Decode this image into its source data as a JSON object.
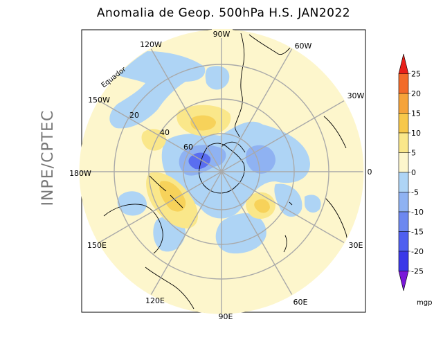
{
  "title": "Anomalia de Geop. 500hPa H.S. JAN2022",
  "side_label": "INPE/CPTEC",
  "longitude_labels": [
    "90W",
    "60W",
    "30W",
    "0",
    "30E",
    "60E",
    "90E",
    "120E",
    "150E",
    "180W",
    "150W",
    "120W"
  ],
  "latitude_labels": [
    "20",
    "40",
    "60"
  ],
  "equator_label": "Equador",
  "colorbar": {
    "unit": "mgp",
    "ticks": [
      "25",
      "20",
      "15",
      "10",
      "5",
      "0",
      "-5",
      "-10",
      "-15",
      "-20",
      "-25"
    ],
    "colors": [
      "#e8201a",
      "#f26b2a",
      "#f5a33a",
      "#f7c84a",
      "#fae78a",
      "#fdf6cc",
      "#aed4f5",
      "#8fb2f2",
      "#6d88f0",
      "#4f5ff0",
      "#3a38e8",
      "#7a18d8"
    ]
  },
  "colors": {
    "background": "#fdf6cc",
    "negative": "#aed4f5",
    "negative_strong": "#8fb2f2",
    "negative_core": "#5a6ef0",
    "positive": "#fae78a",
    "positive_strong": "#f7d25a",
    "grid": "#a9a9a9"
  }
}
